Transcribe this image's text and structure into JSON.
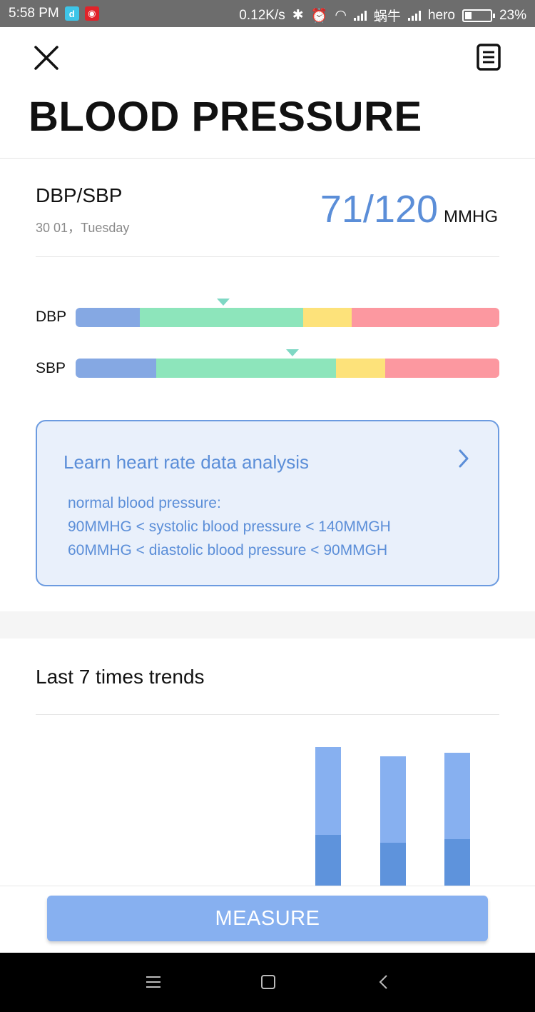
{
  "status_bar": {
    "time": "5:58 PM",
    "net_speed": "0.12K/s",
    "carrier1": "蜗牛",
    "carrier2": "hero",
    "battery": "23%",
    "app_icons": [
      "dingding-icon",
      "netease-music-icon"
    ]
  },
  "header": {
    "title": "BLOOD PRESSURE",
    "close_icon": "close-icon",
    "record_icon": "document-icon"
  },
  "reading": {
    "label": "DBP/SBP",
    "date": "30 01，Tuesday",
    "value": "71/120",
    "unit": "MMHG"
  },
  "gauges": [
    {
      "label": "DBP",
      "marker_fraction": 0.348,
      "segments": [
        0.152,
        0.385,
        0.115,
        0.348
      ]
    },
    {
      "label": "SBP",
      "marker_fraction": 0.512,
      "segments": [
        0.191,
        0.424,
        0.115,
        0.27
      ]
    }
  ],
  "gauge_colors": [
    "#85a8e3",
    "#8de5bb",
    "#fde27a",
    "#fc98a0"
  ],
  "info_card": {
    "title": "Learn heart rate data analysis",
    "lines": [
      "normal blood pressure:",
      "90MMHG < systolic blood pressure < 140MMGH",
      "60MMHG < diastolic blood pressure < 90MMGH"
    ]
  },
  "trends": {
    "title": "Last 7 times trends"
  },
  "chart_data": {
    "type": "bar",
    "categories": [
      "",
      "",
      "",
      "",
      "",
      "",
      ""
    ],
    "series": [
      {
        "values": [
          null,
          null,
          null,
          null,
          71,
          60,
          65
        ]
      },
      {
        "values": [
          null,
          null,
          null,
          null,
          120,
          112,
          115
        ]
      }
    ]
  },
  "action": {
    "measure_label": "MEASURE"
  },
  "colors": {
    "accent": "#5b8ed8",
    "button": "#87b0f0"
  }
}
